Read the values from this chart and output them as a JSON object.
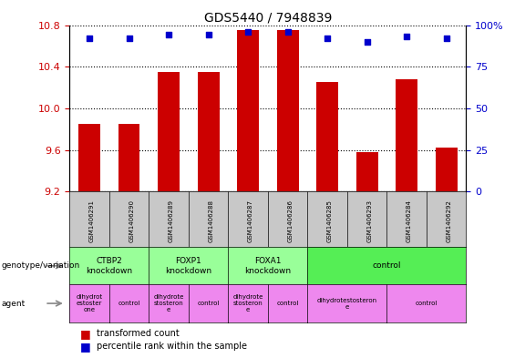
{
  "title": "GDS5440 / 7948839",
  "samples": [
    "GSM1406291",
    "GSM1406290",
    "GSM1406289",
    "GSM1406288",
    "GSM1406287",
    "GSM1406286",
    "GSM1406285",
    "GSM1406293",
    "GSM1406284",
    "GSM1406292"
  ],
  "bar_values": [
    9.85,
    9.85,
    10.35,
    10.35,
    10.75,
    10.75,
    10.25,
    9.58,
    10.28,
    9.62
  ],
  "percentile_values": [
    92,
    92,
    94,
    94,
    96,
    96,
    92,
    90,
    93,
    92
  ],
  "ylim_left": [
    9.2,
    10.8
  ],
  "ylim_right": [
    0,
    100
  ],
  "yticks_left": [
    9.2,
    9.6,
    10.0,
    10.4,
    10.8
  ],
  "yticks_right": [
    0,
    25,
    50,
    75,
    100
  ],
  "bar_color": "#cc0000",
  "dot_color": "#0000cc",
  "genotype_groups": [
    {
      "label": "CTBP2\nknockdown",
      "start": 0,
      "end": 2,
      "color": "#99ff99"
    },
    {
      "label": "FOXP1\nknockdown",
      "start": 2,
      "end": 4,
      "color": "#99ff99"
    },
    {
      "label": "FOXA1\nknockdown",
      "start": 4,
      "end": 6,
      "color": "#99ff99"
    },
    {
      "label": "control",
      "start": 6,
      "end": 10,
      "color": "#55ee55"
    }
  ],
  "agent_groups": [
    {
      "label": "dihydrot\nestoster\none",
      "start": 0,
      "end": 1,
      "color": "#ee88ee"
    },
    {
      "label": "control",
      "start": 1,
      "end": 2,
      "color": "#ee88ee"
    },
    {
      "label": "dihydrote\nstosteron\ne",
      "start": 2,
      "end": 3,
      "color": "#ee88ee"
    },
    {
      "label": "control",
      "start": 3,
      "end": 4,
      "color": "#ee88ee"
    },
    {
      "label": "dihydrote\nstosteron\ne",
      "start": 4,
      "end": 5,
      "color": "#ee88ee"
    },
    {
      "label": "control",
      "start": 5,
      "end": 6,
      "color": "#ee88ee"
    },
    {
      "label": "dihydrotestosteron\ne",
      "start": 6,
      "end": 8,
      "color": "#ee88ee"
    },
    {
      "label": "control",
      "start": 8,
      "end": 10,
      "color": "#ee88ee"
    }
  ],
  "left_label_color": "#cc0000",
  "right_label_color": "#0000cc",
  "bg_color": "#ffffff",
  "sample_row_color": "#c8c8c8",
  "grid_color": "#000000"
}
